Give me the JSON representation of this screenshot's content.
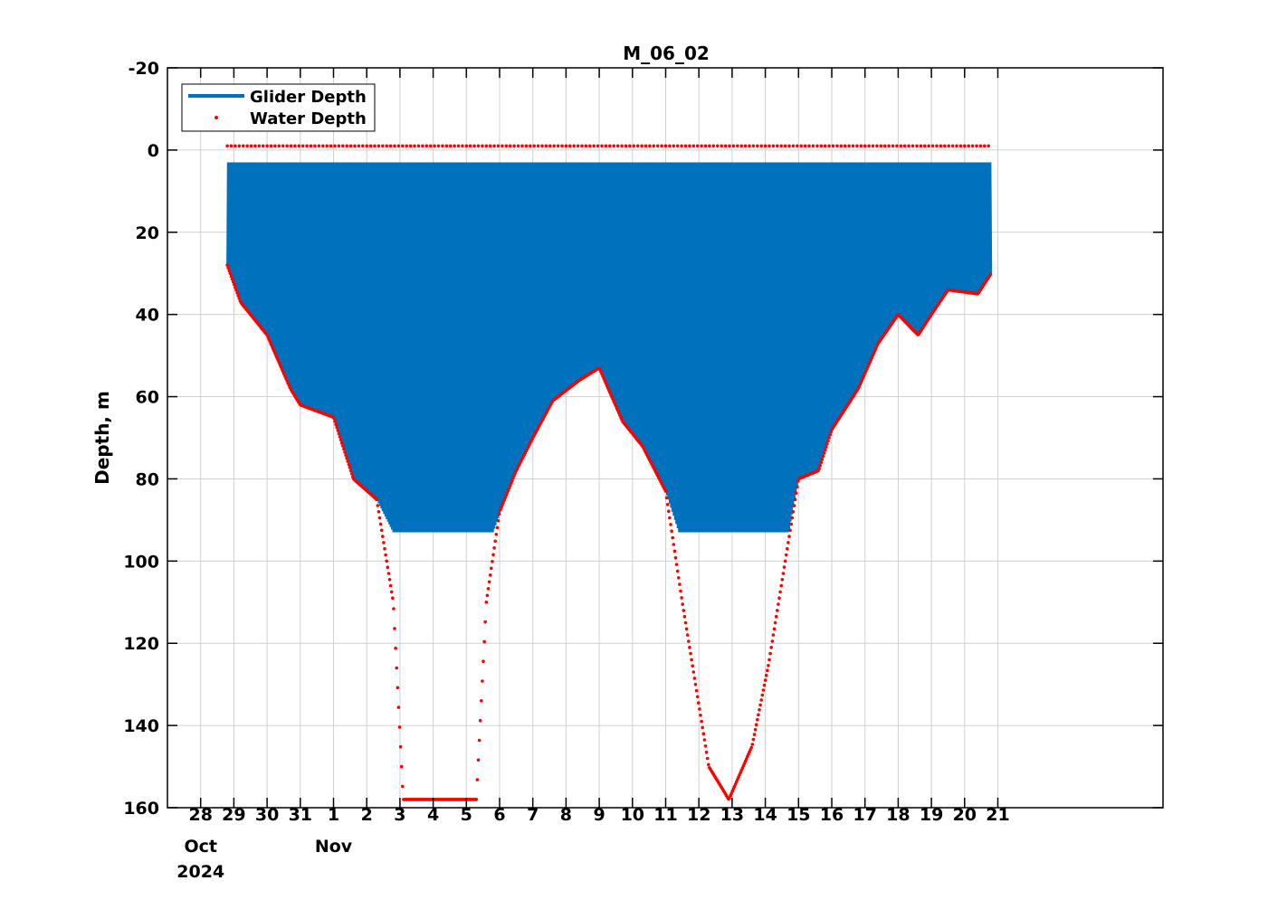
{
  "chart_data": {
    "type": "line",
    "title": "M_06_02",
    "ylabel": "Depth, m",
    "xlabel": "",
    "ylim": [
      -20,
      160
    ],
    "y_reversed": true,
    "y_ticks": [
      "-20",
      "0",
      "20",
      "40",
      "60",
      "80",
      "100",
      "120",
      "140",
      "160"
    ],
    "x_ticks": [
      "28",
      "29",
      "30",
      "31",
      "1",
      "2",
      "3",
      "4",
      "5",
      "6",
      "7",
      "8",
      "9",
      "10",
      "11",
      "12",
      "13",
      "14",
      "15",
      "16",
      "17",
      "18",
      "19",
      "20",
      "21"
    ],
    "x_secondary_labels": [
      {
        "tick": "28",
        "month": "Oct",
        "year": "2024"
      },
      {
        "tick": "1",
        "month": "Nov",
        "year": ""
      }
    ],
    "grid": true,
    "legend_position": "top-left",
    "colors": {
      "glider": "#0072BD",
      "water": "#FF0000",
      "grid": "#d0d0d0"
    },
    "series": [
      {
        "name": "Glider Depth",
        "style": "line",
        "surface_depth": 0,
        "dive_max_depth_profile": [
          {
            "x": "2024-10-28.8",
            "y": 28
          },
          {
            "x": "2024-10-29.2",
            "y": 37
          },
          {
            "x": "2024-10-30",
            "y": 45
          },
          {
            "x": "2024-10-30.7",
            "y": 58
          },
          {
            "x": "2024-10-31",
            "y": 62
          },
          {
            "x": "2024-11-01",
            "y": 65
          },
          {
            "x": "2024-11-01.6",
            "y": 80
          },
          {
            "x": "2024-11-02.3",
            "y": 85
          },
          {
            "x": "2024-11-02.8",
            "y": 93
          },
          {
            "x": "2024-11-05.8",
            "y": 93
          },
          {
            "x": "2024-11-06.5",
            "y": 78
          },
          {
            "x": "2024-11-07",
            "y": 70
          },
          {
            "x": "2024-11-07.6",
            "y": 61
          },
          {
            "x": "2024-11-08.4",
            "y": 56
          },
          {
            "x": "2024-11-09",
            "y": 53
          },
          {
            "x": "2024-11-09.7",
            "y": 66
          },
          {
            "x": "2024-11-10.3",
            "y": 72
          },
          {
            "x": "2024-11-11",
            "y": 83
          },
          {
            "x": "2024-11-11.4",
            "y": 93
          },
          {
            "x": "2024-11-14.7",
            "y": 93
          },
          {
            "x": "2024-11-15",
            "y": 80
          },
          {
            "x": "2024-11-15.6",
            "y": 78
          },
          {
            "x": "2024-11-16",
            "y": 68
          },
          {
            "x": "2024-11-16.8",
            "y": 58
          },
          {
            "x": "2024-11-17.4",
            "y": 47
          },
          {
            "x": "2024-11-18",
            "y": 40
          },
          {
            "x": "2024-11-18.6",
            "y": 45
          },
          {
            "x": "2024-11-19",
            "y": 40
          },
          {
            "x": "2024-11-19.5",
            "y": 34
          },
          {
            "x": "2024-11-20.4",
            "y": 35
          },
          {
            "x": "2024-11-20.8",
            "y": 30
          }
        ]
      },
      {
        "name": "Water Depth",
        "style": "dots",
        "surface_marker_depth": -1,
        "bottom_profile": [
          {
            "x": "2024-10-28.8",
            "y": 28
          },
          {
            "x": "2024-10-29.2",
            "y": 37
          },
          {
            "x": "2024-10-30",
            "y": 45
          },
          {
            "x": "2024-10-30.7",
            "y": 58
          },
          {
            "x": "2024-10-31",
            "y": 62
          },
          {
            "x": "2024-11-01",
            "y": 65
          },
          {
            "x": "2024-11-01.6",
            "y": 80
          },
          {
            "x": "2024-11-02.3",
            "y": 85
          },
          {
            "x": "2024-11-02.8",
            "y": 110
          },
          {
            "x": "2024-11-03.1",
            "y": 158
          },
          {
            "x": "2024-11-05.3",
            "y": 158
          },
          {
            "x": "2024-11-05.6",
            "y": 110
          },
          {
            "x": "2024-11-06",
            "y": 88
          },
          {
            "x": "2024-11-06.5",
            "y": 78
          },
          {
            "x": "2024-11-07",
            "y": 70
          },
          {
            "x": "2024-11-07.6",
            "y": 61
          },
          {
            "x": "2024-11-08.4",
            "y": 56
          },
          {
            "x": "2024-11-09",
            "y": 53
          },
          {
            "x": "2024-11-09.7",
            "y": 66
          },
          {
            "x": "2024-11-10.3",
            "y": 72
          },
          {
            "x": "2024-11-11",
            "y": 83
          },
          {
            "x": "2024-11-11.5",
            "y": 110
          },
          {
            "x": "2024-11-12.3",
            "y": 150
          },
          {
            "x": "2024-11-12.9",
            "y": 158
          },
          {
            "x": "2024-11-13.6",
            "y": 145
          },
          {
            "x": "2024-11-14.1",
            "y": 125
          },
          {
            "x": "2024-11-14.6",
            "y": 100
          },
          {
            "x": "2024-11-15",
            "y": 80
          },
          {
            "x": "2024-11-15.6",
            "y": 78
          },
          {
            "x": "2024-11-16",
            "y": 68
          },
          {
            "x": "2024-11-16.8",
            "y": 58
          },
          {
            "x": "2024-11-17.4",
            "y": 47
          },
          {
            "x": "2024-11-18",
            "y": 40
          },
          {
            "x": "2024-11-18.6",
            "y": 45
          },
          {
            "x": "2024-11-19",
            "y": 40
          },
          {
            "x": "2024-11-19.5",
            "y": 34
          },
          {
            "x": "2024-11-20.4",
            "y": 35
          },
          {
            "x": "2024-11-20.8",
            "y": 30
          }
        ]
      }
    ]
  }
}
